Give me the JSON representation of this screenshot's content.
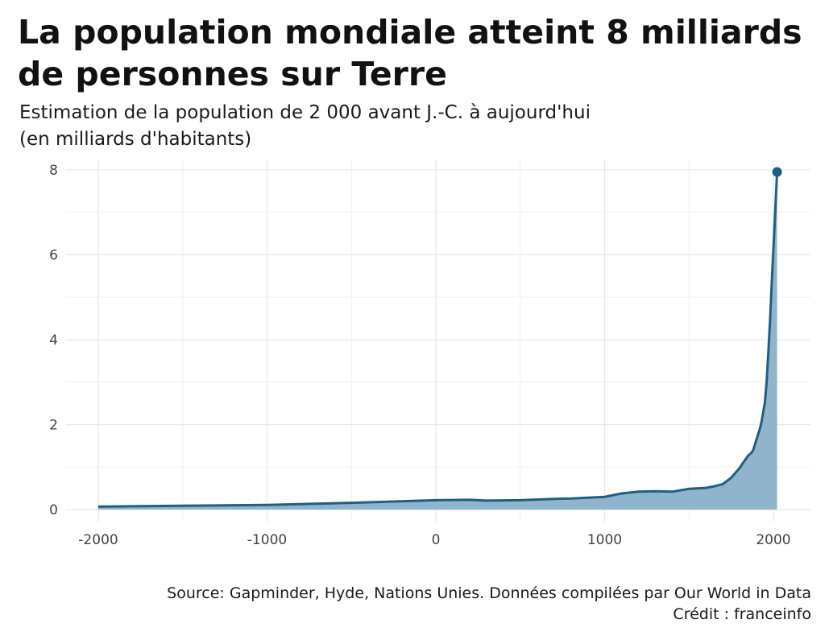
{
  "title": "La population mondiale atteint 8 milliards de personnes sur Terre",
  "subtitle_line1": "Estimation de la population de 2 000 avant J.-C. à aujourd'hui",
  "subtitle_line2": "(en milliards d'habitants)",
  "source": "Source: Gapminder, Hyde, Nations Unies. Données compilées par Our World in Data",
  "credit": "Crédit : franceinfo",
  "colors": {
    "line": "#1f5f82",
    "area": "#8fb4cb",
    "grid": "#e6e6e6"
  },
  "chart_data": {
    "type": "area",
    "title": "La population mondiale atteint 8 milliards de personnes sur Terre",
    "xlabel": "",
    "ylabel": "",
    "xlim": [
      -2000,
      2022
    ],
    "ylim": [
      0,
      8
    ],
    "x_ticks": [
      -2000,
      -1000,
      0,
      1000,
      2000
    ],
    "x_tick_labels": [
      "-2000",
      "-1000",
      "0",
      "1000",
      "2000"
    ],
    "y_ticks": [
      0,
      2,
      4,
      6,
      8
    ],
    "y_tick_labels": [
      "0",
      "2",
      "4",
      "6",
      "8"
    ],
    "grid": true,
    "legend": "none",
    "series": [
      {
        "x": [
          -2000,
          -1500,
          -1000,
          -500,
          0,
          200,
          300,
          500,
          700,
          800,
          900,
          1000,
          1100,
          1200,
          1300,
          1400,
          1500,
          1600,
          1650,
          1700,
          1750,
          1800,
          1820,
          1850,
          1870,
          1880,
          1900,
          1910,
          1920,
          1930,
          1940,
          1950,
          1960,
          1970,
          1980,
          1990,
          2000,
          2010,
          2022
        ],
        "y": [
          0.07,
          0.09,
          0.11,
          0.16,
          0.22,
          0.23,
          0.21,
          0.22,
          0.25,
          0.26,
          0.28,
          0.3,
          0.38,
          0.42,
          0.43,
          0.42,
          0.49,
          0.51,
          0.55,
          0.6,
          0.75,
          0.98,
          1.1,
          1.27,
          1.34,
          1.4,
          1.65,
          1.78,
          1.9,
          2.07,
          2.3,
          2.53,
          3.02,
          3.7,
          4.44,
          5.33,
          6.14,
          6.96,
          7.95
        ]
      }
    ],
    "end_marker": {
      "x": 2022,
      "y": 7.95
    }
  }
}
